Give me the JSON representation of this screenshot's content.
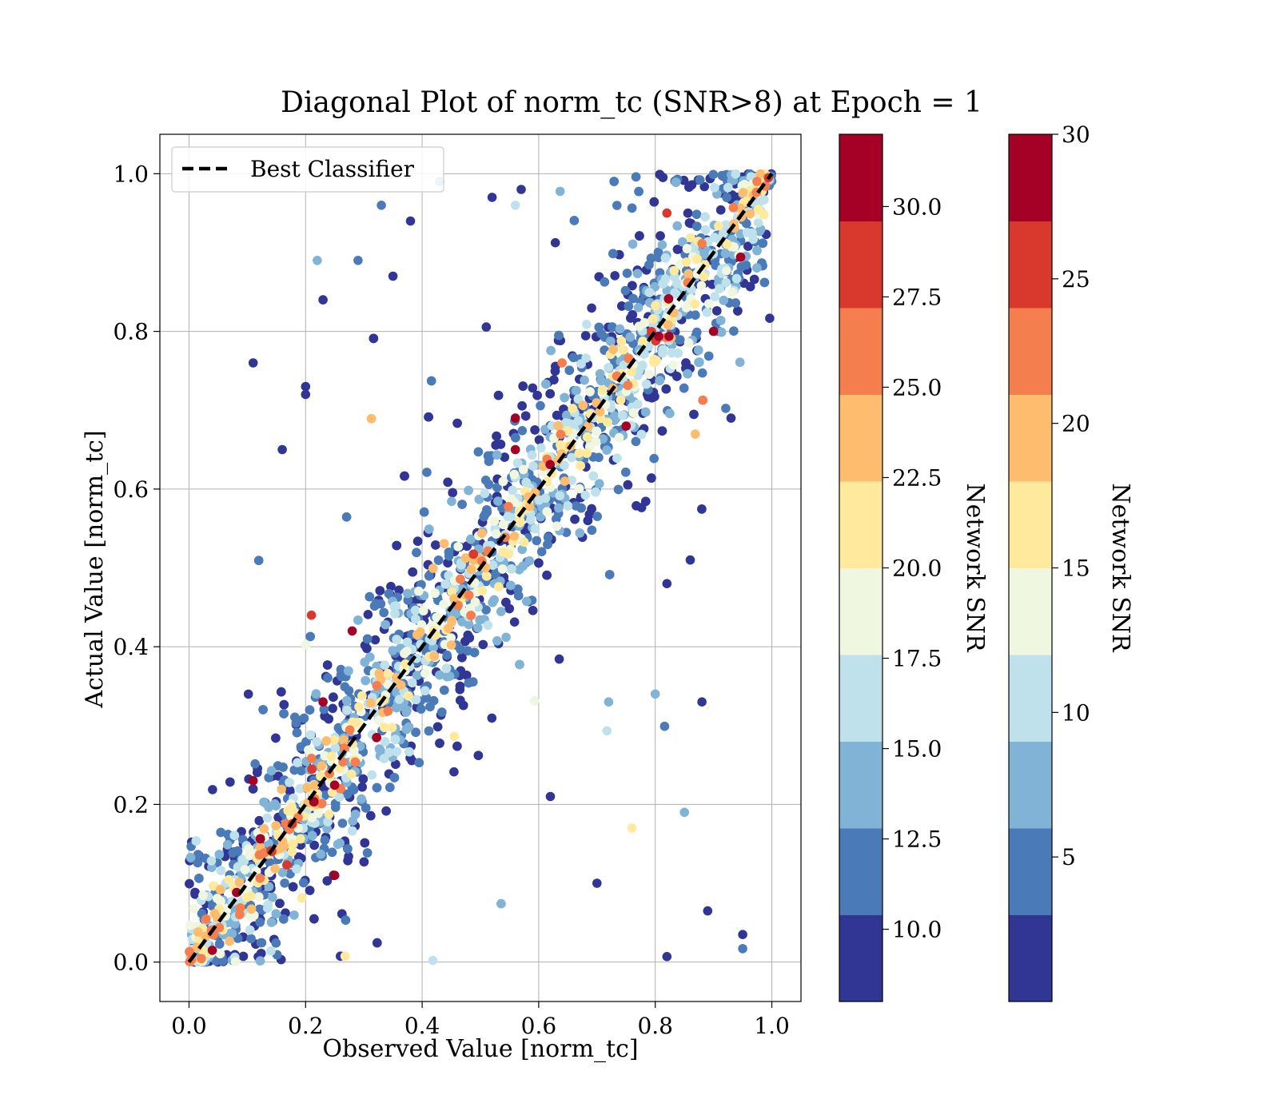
{
  "chart_data": {
    "type": "scatter",
    "title": "Diagonal Plot of norm_tc (SNR>8) at Epoch = 1",
    "xlabel": "Observed Value [norm_tc]",
    "ylabel": "Actual Value [norm_tc]",
    "xlim": [
      -0.05,
      1.05
    ],
    "ylim": [
      -0.05,
      1.05
    ],
    "xticks": [
      "0.0",
      "0.2",
      "0.4",
      "0.6",
      "0.8",
      "1.0"
    ],
    "yticks": [
      "0.0",
      "0.2",
      "0.4",
      "0.6",
      "0.8",
      "1.0"
    ],
    "grid": true,
    "legend": {
      "position": "top-left",
      "entries": [
        "Best Classifier"
      ]
    },
    "reference_line": {
      "label": "Best Classifier",
      "x": [
        0,
        1
      ],
      "y": [
        0,
        1
      ],
      "style": "dashed",
      "color": "#000000"
    },
    "color_variable": "Network SNR",
    "colorbars": [
      {
        "label": "Network SNR",
        "range": [
          8,
          32
        ],
        "ticks": [
          "10.0",
          "12.5",
          "15.0",
          "17.5",
          "20.0",
          "22.5",
          "25.0",
          "27.5",
          "30.0"
        ],
        "tick_values": [
          10,
          12.5,
          15,
          17.5,
          20,
          22.5,
          25,
          27.5,
          30
        ]
      },
      {
        "label": "Network SNR",
        "range": [
          0,
          30
        ],
        "ticks": [
          "5",
          "10",
          "15",
          "20",
          "25",
          "30"
        ],
        "tick_values": [
          5,
          10,
          15,
          20,
          25,
          30
        ]
      }
    ],
    "colormap": [
      "#313695",
      "#4575b4",
      "#74add1",
      "#abd9e9",
      "#e0f3f8",
      "#fee090",
      "#fdae61",
      "#f46d43",
      "#d73027",
      "#a50026"
    ],
    "cmap_bins": [
      "#313695",
      "#4a7ab7",
      "#80b3d5",
      "#bfe1ec",
      "#eff7e1",
      "#fee99d",
      "#fdbc6e",
      "#f57e4e",
      "#d8392c",
      "#a50026"
    ],
    "sample_points": [
      {
        "x": 0.11,
        "y": 0.76,
        "snr": 9
      },
      {
        "x": 0.2,
        "y": 0.73,
        "snr": 9
      },
      {
        "x": 0.2,
        "y": 0.72,
        "snr": 9
      },
      {
        "x": 0.16,
        "y": 0.65,
        "snr": 9
      },
      {
        "x": 0.22,
        "y": 0.89,
        "snr": 15
      },
      {
        "x": 0.29,
        "y": 0.89,
        "snr": 12
      },
      {
        "x": 0.23,
        "y": 0.84,
        "snr": 9
      },
      {
        "x": 0.33,
        "y": 0.96,
        "snr": 12
      },
      {
        "x": 0.43,
        "y": 0.99,
        "snr": 15
      },
      {
        "x": 0.52,
        "y": 0.97,
        "snr": 9
      },
      {
        "x": 0.56,
        "y": 0.96,
        "snr": 16
      },
      {
        "x": 0.57,
        "y": 0.98,
        "snr": 9
      },
      {
        "x": 0.38,
        "y": 0.94,
        "snr": 9
      },
      {
        "x": 0.35,
        "y": 0.87,
        "snr": 9
      },
      {
        "x": 0.28,
        "y": 0.42,
        "snr": 30
      },
      {
        "x": 0.21,
        "y": 0.44,
        "snr": 28
      },
      {
        "x": 0.23,
        "y": 0.33,
        "snr": 30
      },
      {
        "x": 0.11,
        "y": 0.23,
        "snr": 30
      },
      {
        "x": 0.04,
        "y": 0.015,
        "snr": 30
      },
      {
        "x": 0.25,
        "y": 0.11,
        "snr": 30
      },
      {
        "x": 0.56,
        "y": 0.69,
        "snr": 30
      },
      {
        "x": 0.56,
        "y": 0.65,
        "snr": 30
      },
      {
        "x": 0.75,
        "y": 0.68,
        "snr": 30
      },
      {
        "x": 0.9,
        "y": 0.8,
        "snr": 30
      },
      {
        "x": 0.82,
        "y": 0.95,
        "snr": 28
      },
      {
        "x": 0.64,
        "y": 0.76,
        "snr": 26
      },
      {
        "x": 0.76,
        "y": 0.17,
        "snr": 20
      },
      {
        "x": 0.85,
        "y": 0.19,
        "snr": 14
      },
      {
        "x": 0.88,
        "y": 0.33,
        "snr": 9
      },
      {
        "x": 0.89,
        "y": 0.065,
        "snr": 9
      },
      {
        "x": 0.95,
        "y": 0.035,
        "snr": 9
      },
      {
        "x": 0.95,
        "y": 0.017,
        "snr": 12
      },
      {
        "x": 0.82,
        "y": 0.007,
        "snr": 9
      },
      {
        "x": 0.8,
        "y": 0.34,
        "snr": 14
      },
      {
        "x": 0.93,
        "y": 0.69,
        "snr": 9
      },
      {
        "x": 0.86,
        "y": 0.51,
        "snr": 9
      },
      {
        "x": 0.82,
        "y": 0.48,
        "snr": 9
      },
      {
        "x": 0.72,
        "y": 0.33,
        "snr": 15
      },
      {
        "x": 0.62,
        "y": 0.21,
        "snr": 9
      },
      {
        "x": 0.7,
        "y": 0.1,
        "snr": 9
      }
    ]
  }
}
